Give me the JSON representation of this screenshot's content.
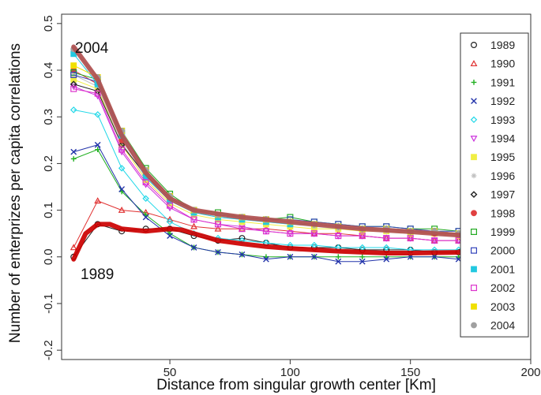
{
  "chart_data": {
    "type": "line",
    "title": "",
    "xlabel": "Distance from singular growth center  [Km]",
    "ylabel": "Number of enterprizes per capita correlations",
    "xlim": [
      5,
      200
    ],
    "ylim": [
      -0.22,
      0.52
    ],
    "x_ticks": [
      50,
      100,
      150,
      200
    ],
    "y_ticks": [
      -0.2,
      -0.1,
      0.0,
      0.1,
      0.2,
      0.3,
      0.4,
      0.5
    ],
    "grid": false,
    "legend_position": "right",
    "x": [
      10,
      20,
      30,
      40,
      50,
      60,
      70,
      80,
      90,
      100,
      110,
      120,
      130,
      140,
      150,
      160,
      170
    ],
    "series": [
      {
        "name": "1989",
        "color": "#222222",
        "marker": "circle-open",
        "values": [
          0.0,
          0.07,
          0.055,
          0.06,
          0.06,
          0.045,
          0.035,
          0.04,
          0.03,
          0.02,
          0.02,
          0.02,
          0.015,
          0.015,
          0.015,
          0.01,
          0.01
        ]
      },
      {
        "name": "1990",
        "color": "#e03030",
        "marker": "triangle-open",
        "values": [
          0.02,
          0.12,
          0.1,
          0.095,
          0.08,
          0.065,
          0.06,
          0.06,
          0.06,
          0.055,
          0.05,
          0.05,
          0.045,
          0.04,
          0.04,
          0.035,
          0.035
        ]
      },
      {
        "name": "1991",
        "color": "#22b022",
        "marker": "plus",
        "values": [
          0.21,
          0.23,
          0.14,
          0.09,
          0.05,
          0.02,
          0.01,
          0.005,
          0.0,
          0.0,
          0.0,
          0.0,
          0.0,
          0.0,
          0.0,
          0.0,
          0.0
        ]
      },
      {
        "name": "1992",
        "color": "#2233aa",
        "marker": "x",
        "values": [
          0.225,
          0.24,
          0.145,
          0.085,
          0.045,
          0.02,
          0.01,
          0.005,
          -0.005,
          0.0,
          0.0,
          -0.01,
          -0.01,
          -0.005,
          0.0,
          0.0,
          -0.005
        ]
      },
      {
        "name": "1993",
        "color": "#22d8e8",
        "marker": "diamond-open",
        "values": [
          0.315,
          0.305,
          0.19,
          0.125,
          0.075,
          0.05,
          0.04,
          0.035,
          0.03,
          0.025,
          0.025,
          0.02,
          0.02,
          0.02,
          0.015,
          0.015,
          0.015
        ]
      },
      {
        "name": "1994",
        "color": "#cc33dd",
        "marker": "triangle-down-open",
        "values": [
          0.365,
          0.345,
          0.225,
          0.155,
          0.105,
          0.08,
          0.07,
          0.065,
          0.055,
          0.05,
          0.05,
          0.045,
          0.045,
          0.04,
          0.04,
          0.035,
          0.035
        ]
      },
      {
        "name": "1995",
        "color": "#f0ee44",
        "marker": "square",
        "values": [
          0.38,
          0.36,
          0.24,
          0.165,
          0.115,
          0.09,
          0.08,
          0.075,
          0.07,
          0.065,
          0.06,
          0.06,
          0.055,
          0.055,
          0.05,
          0.05,
          0.045
        ]
      },
      {
        "name": "1996",
        "color": "#c0c0c0",
        "marker": "star",
        "values": [
          0.39,
          0.365,
          0.245,
          0.17,
          0.12,
          0.095,
          0.085,
          0.08,
          0.075,
          0.07,
          0.065,
          0.06,
          0.06,
          0.055,
          0.055,
          0.05,
          0.05
        ]
      },
      {
        "name": "1997",
        "color": "#222222",
        "marker": "diamond-plus",
        "values": [
          0.37,
          0.355,
          0.24,
          0.175,
          0.125,
          0.1,
          0.09,
          0.085,
          0.08,
          0.075,
          0.07,
          0.065,
          0.06,
          0.06,
          0.055,
          0.055,
          0.05
        ]
      },
      {
        "name": "1998",
        "color": "#e04040",
        "marker": "circle-plus",
        "values": [
          0.4,
          0.37,
          0.25,
          0.18,
          0.13,
          0.1,
          0.09,
          0.085,
          0.08,
          0.075,
          0.07,
          0.065,
          0.06,
          0.06,
          0.055,
          0.05,
          0.05
        ]
      },
      {
        "name": "1999",
        "color": "#22aa22",
        "marker": "square-x",
        "values": [
          0.395,
          0.38,
          0.27,
          0.19,
          0.135,
          0.1,
          0.095,
          0.085,
          0.08,
          0.085,
          0.075,
          0.07,
          0.065,
          0.065,
          0.06,
          0.06,
          0.055
        ]
      },
      {
        "name": "2000",
        "color": "#3344bb",
        "marker": "square-plus",
        "values": [
          0.39,
          0.375,
          0.265,
          0.185,
          0.13,
          0.1,
          0.09,
          0.085,
          0.08,
          0.08,
          0.075,
          0.07,
          0.065,
          0.065,
          0.06,
          0.055,
          0.055
        ]
      },
      {
        "name": "2001",
        "color": "#22c8e0",
        "marker": "square",
        "values": [
          0.435,
          0.37,
          0.26,
          0.17,
          0.12,
          0.095,
          0.085,
          0.08,
          0.075,
          0.07,
          0.07,
          0.065,
          0.06,
          0.06,
          0.055,
          0.055,
          0.05
        ]
      },
      {
        "name": "2002",
        "color": "#dd33cc",
        "marker": "square-x-open",
        "values": [
          0.36,
          0.35,
          0.23,
          0.16,
          0.11,
          0.08,
          0.07,
          0.06,
          0.055,
          0.05,
          0.05,
          0.045,
          0.045,
          0.04,
          0.04,
          0.035,
          0.035
        ]
      },
      {
        "name": "2003",
        "color": "#f0e000",
        "marker": "square",
        "values": [
          0.41,
          0.385,
          0.27,
          0.185,
          0.13,
          0.1,
          0.09,
          0.085,
          0.08,
          0.075,
          0.07,
          0.065,
          0.06,
          0.06,
          0.055,
          0.055,
          0.05
        ]
      },
      {
        "name": "2004",
        "color": "#a0a0a0",
        "marker": "circle",
        "values": [
          0.445,
          0.385,
          0.27,
          0.185,
          0.13,
          0.1,
          0.09,
          0.085,
          0.08,
          0.075,
          0.07,
          0.065,
          0.06,
          0.06,
          0.055,
          0.055,
          0.05
        ]
      }
    ],
    "highlight_curves": [
      {
        "label": "2004",
        "color": "#b05050",
        "x": [
          10,
          20,
          30,
          40,
          50,
          60,
          70,
          80,
          90,
          100,
          110,
          120,
          130,
          140,
          150,
          160,
          175
        ],
        "values": [
          0.45,
          0.38,
          0.26,
          0.18,
          0.125,
          0.1,
          0.092,
          0.085,
          0.08,
          0.075,
          0.07,
          0.065,
          0.06,
          0.057,
          0.054,
          0.05,
          0.045
        ]
      },
      {
        "label": "1989",
        "color": "#cc0000",
        "x": [
          10,
          15,
          20,
          25,
          30,
          40,
          50,
          55,
          60,
          70,
          80,
          90,
          100,
          110,
          120,
          130,
          140,
          150,
          160,
          175
        ],
        "values": [
          -0.005,
          0.05,
          0.07,
          0.07,
          0.06,
          0.055,
          0.06,
          0.058,
          0.05,
          0.035,
          0.028,
          0.022,
          0.018,
          0.015,
          0.012,
          0.01,
          0.008,
          0.008,
          0.009,
          0.01
        ]
      }
    ]
  }
}
